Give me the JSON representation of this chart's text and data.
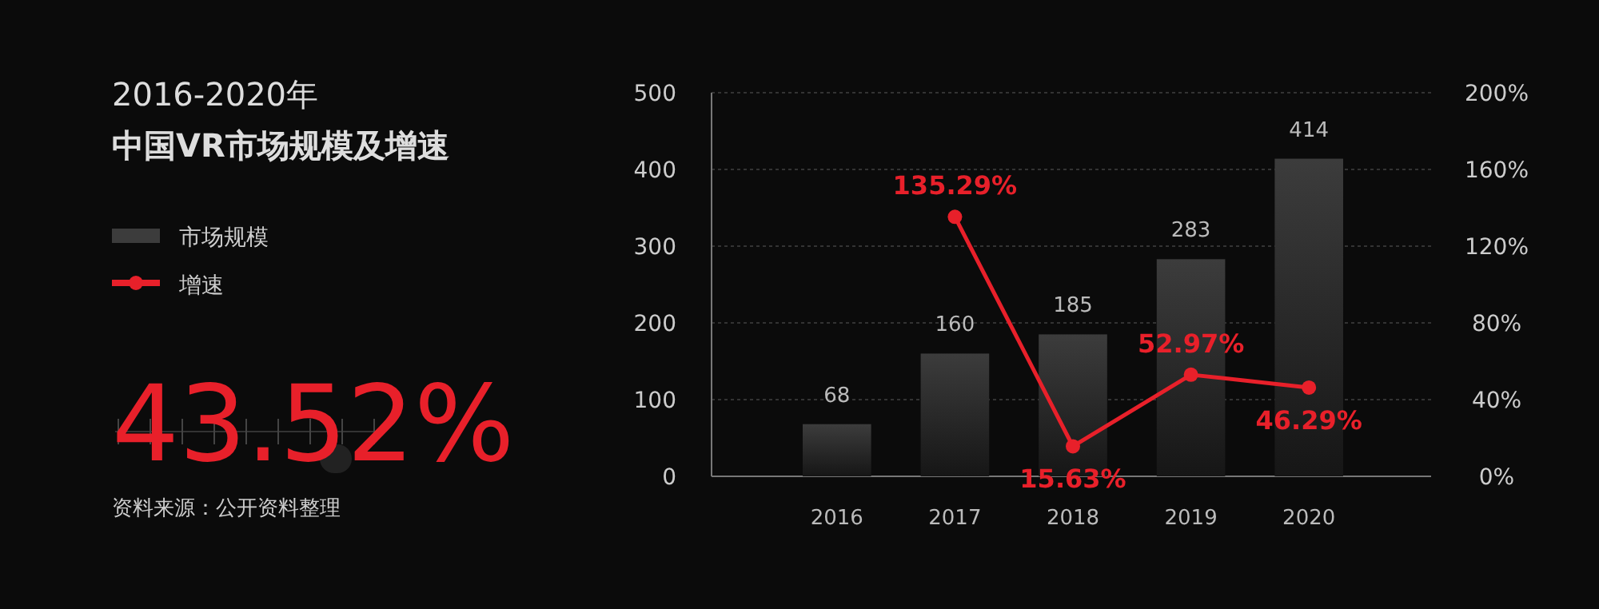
{
  "chart_data": {
    "type": "bar",
    "title": "2016-2020年",
    "subtitle": "中国VR市场规模及增速",
    "categories": [
      "2016",
      "2017",
      "2018",
      "2019",
      "2020"
    ],
    "series": [
      {
        "name": "市场规模",
        "color": "#3c3c3c",
        "values": [
          68,
          160,
          185,
          283,
          414
        ],
        "value_labels": [
          "68",
          "160",
          "185",
          "283",
          "414"
        ]
      },
      {
        "name": "增速",
        "type": "line",
        "axis": "y2",
        "color": "#e8202a",
        "values": [
          null,
          135.29,
          15.63,
          52.97,
          46.29
        ],
        "value_labels": [
          null,
          "135.29%",
          "15.63%",
          "52.97%",
          "46.29%"
        ]
      }
    ],
    "ylim": [
      0,
      500
    ],
    "yticks": [
      0,
      100,
      200,
      300,
      400,
      500
    ],
    "y2lim": [
      0,
      200
    ],
    "y2ticks": [
      {
        "value": 0,
        "label": "0%"
      },
      {
        "value": 40,
        "label": "40%"
      },
      {
        "value": 80,
        "label": "80%"
      },
      {
        "value": 120,
        "label": "120%"
      },
      {
        "value": 160,
        "label": "160%"
      },
      {
        "value": 200,
        "label": "200%"
      }
    ],
    "grid": "y",
    "legend": "left",
    "marker": "circle",
    "annotations": [
      "43.52%",
      "资料来源：公开资料整理"
    ]
  }
}
